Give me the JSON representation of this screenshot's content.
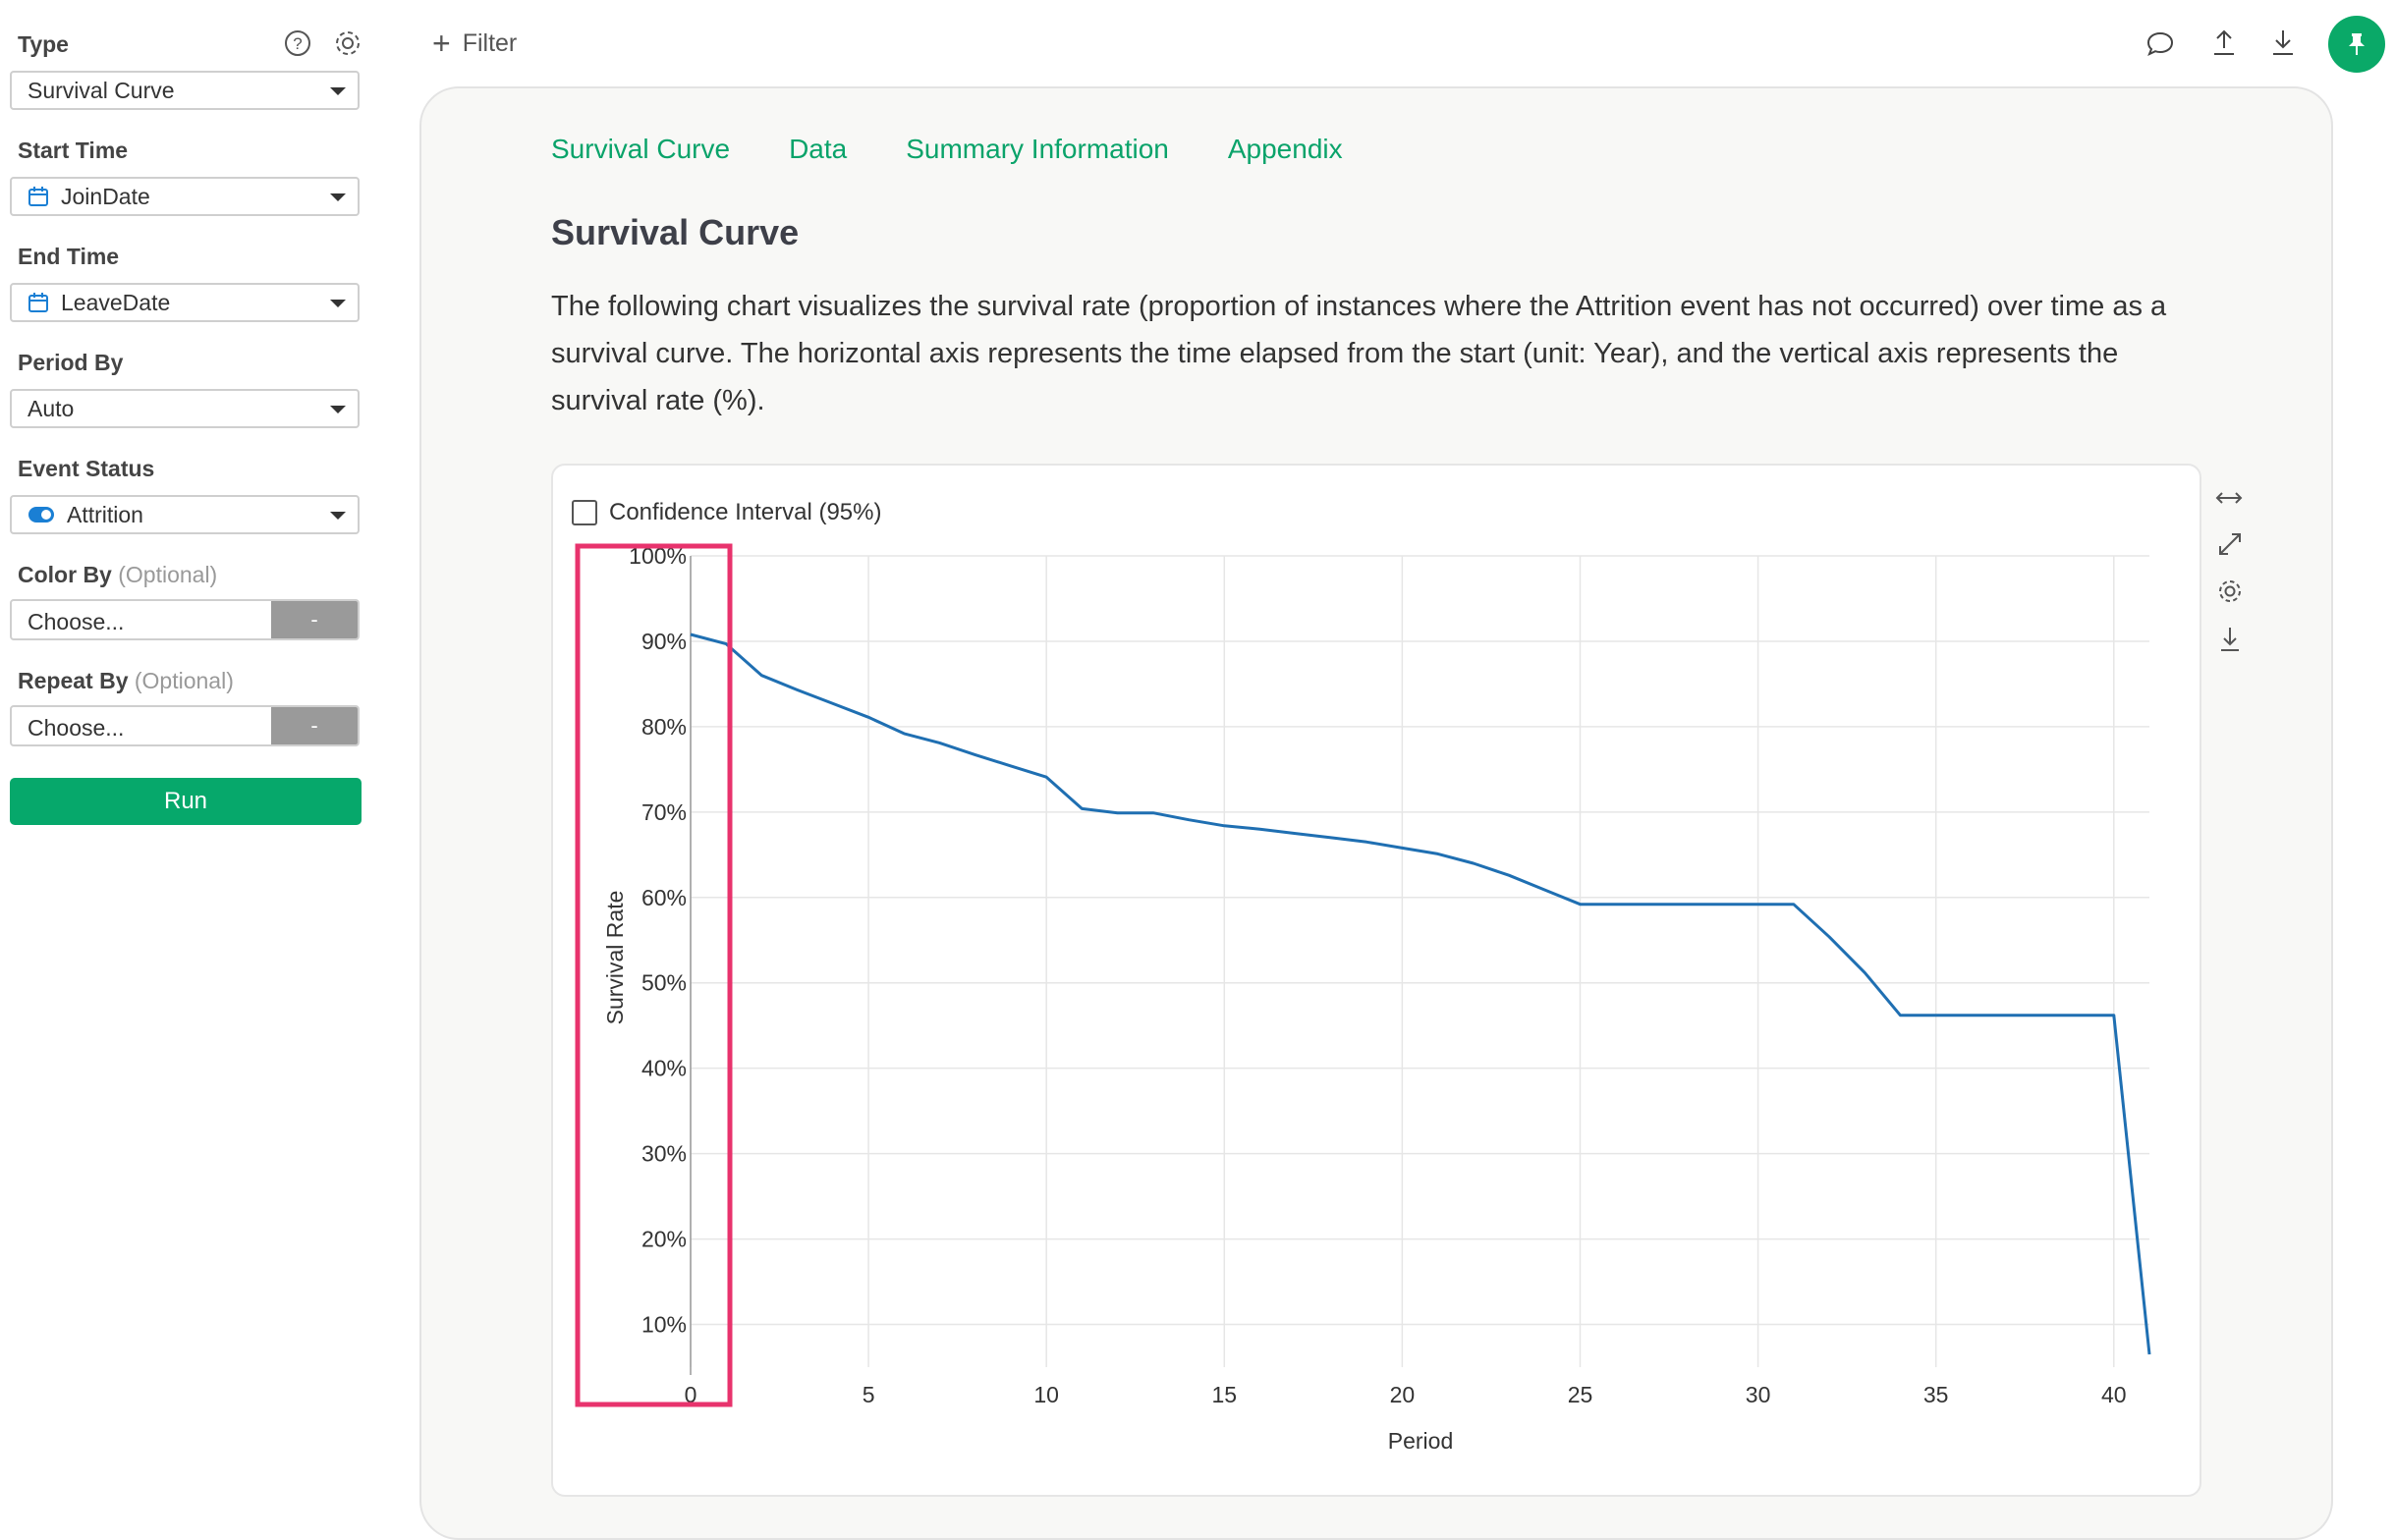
{
  "sidebar": {
    "type_label": "Type",
    "type_value": "Survival Curve",
    "start_label": "Start Time",
    "start_value": "JoinDate",
    "end_label": "End Time",
    "end_value": "LeaveDate",
    "period_label": "Period By",
    "period_value": "Auto",
    "event_label": "Event Status",
    "event_value": "Attrition",
    "color_label": "Color By",
    "color_optional": "(Optional)",
    "color_value": "Choose...",
    "color_dash": "-",
    "repeat_label": "Repeat By",
    "repeat_optional": "(Optional)",
    "repeat_value": "Choose...",
    "repeat_dash": "-",
    "run_label": "Run"
  },
  "toolbar": {
    "filter_label": "Filter"
  },
  "tabs": [
    "Survival Curve",
    "Data",
    "Summary Information",
    "Appendix"
  ],
  "content": {
    "title": "Survival Curve",
    "description": "The following chart visualizes the survival rate (proportion of instances where the Attrition event has not occurred) over time as a survival curve. The horizontal axis represents the time elapsed from the start (unit: Year), and the vertical axis represents the survival rate (%)."
  },
  "chart_controls": {
    "ci_label": "Confidence Interval (95%)"
  },
  "colors": {
    "accent": "#06a86b",
    "line": "#1f6fb2",
    "highlight": "#e8336d"
  },
  "chart_data": {
    "type": "line",
    "xlabel": "Period",
    "ylabel": "Survival Rate",
    "xlim": [
      0,
      41
    ],
    "ylim": [
      5,
      100
    ],
    "x_ticks": [
      0,
      5,
      10,
      15,
      20,
      25,
      30,
      35,
      40
    ],
    "y_ticks": [
      10,
      20,
      30,
      40,
      50,
      60,
      70,
      80,
      90,
      100
    ],
    "y_tick_labels": [
      "10%",
      "20%",
      "30%",
      "40%",
      "50%",
      "60%",
      "70%",
      "80%",
      "90%",
      "100%"
    ],
    "grid": true,
    "series": [
      {
        "x": [
          0,
          1,
          2,
          3,
          4,
          5,
          6,
          7,
          8,
          9,
          10,
          11,
          12,
          13,
          14,
          15,
          16,
          17,
          18,
          19,
          20,
          21,
          22,
          23,
          24,
          25,
          26,
          27,
          28,
          29,
          30,
          31,
          32,
          33,
          34,
          35,
          36,
          37,
          38,
          39,
          40,
          41
        ],
        "y": [
          90.8,
          89.7,
          86.0,
          84.3,
          82.7,
          81.1,
          79.2,
          78.1,
          76.7,
          75.4,
          74.1,
          70.4,
          69.9,
          69.9,
          69.1,
          68.4,
          68.0,
          67.5,
          67.0,
          66.5,
          65.8,
          65.1,
          64.0,
          62.6,
          60.9,
          59.2,
          59.2,
          59.2,
          59.2,
          59.2,
          59.2,
          59.2,
          55.4,
          51.2,
          46.2,
          46.2,
          46.2,
          46.2,
          46.2,
          46.2,
          46.2,
          6.5
        ]
      }
    ],
    "highlight_box": "y-axis tick labels"
  }
}
